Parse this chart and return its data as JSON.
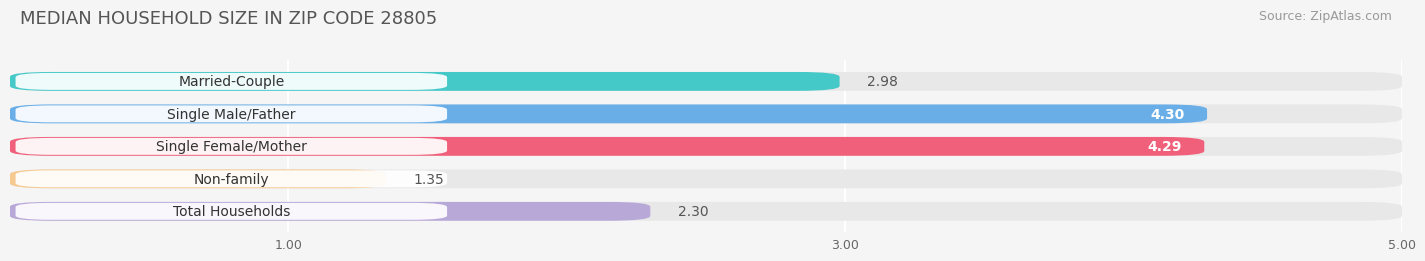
{
  "title": "MEDIAN HOUSEHOLD SIZE IN ZIP CODE 28805",
  "source": "Source: ZipAtlas.com",
  "categories": [
    "Married-Couple",
    "Single Male/Father",
    "Single Female/Mother",
    "Non-family",
    "Total Households"
  ],
  "values": [
    2.98,
    4.3,
    4.29,
    1.35,
    2.3
  ],
  "bar_colors": [
    "#45C8C8",
    "#6aaee8",
    "#F0607A",
    "#F5C990",
    "#B8A8D8"
  ],
  "bar_edge_colors": [
    "#30b0b0",
    "#4a8ec8",
    "#d04060",
    "#d8a860",
    "#9880c0"
  ],
  "label_pill_color": "#ffffff",
  "xlim": [
    0,
    5.0
  ],
  "xticks": [
    1.0,
    3.0,
    5.0
  ],
  "xticklabels": [
    "1.00",
    "3.00",
    "5.00"
  ],
  "background_color": "#f5f5f5",
  "bar_background_color": "#e8e8e8",
  "title_fontsize": 13,
  "source_fontsize": 9,
  "label_fontsize": 10,
  "value_fontsize": 10
}
